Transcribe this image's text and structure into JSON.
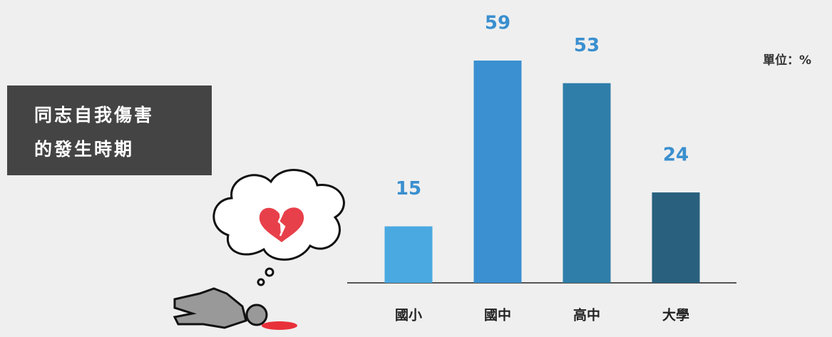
{
  "chart_data": {
    "type": "bar",
    "title": [
      "同志自我傷害",
      "的發生時期"
    ],
    "unit_label": "單位：%",
    "categories": [
      "國小",
      "國中",
      "高中",
      "大學"
    ],
    "values": [
      15,
      59,
      53,
      24
    ],
    "colors": [
      "#4aa9e1",
      "#3a90d0",
      "#2f7ea9",
      "#28607e"
    ]
  }
}
